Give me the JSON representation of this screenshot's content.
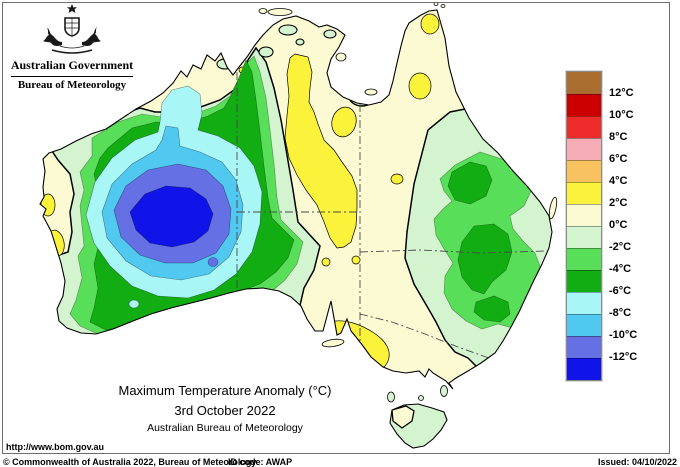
{
  "header": {
    "government": "Australian Government",
    "bureau": "Bureau of Meteorology"
  },
  "map": {
    "title": "Maximum Temperature Anomaly (°C)",
    "date": "3rd October 2022",
    "org": "Australian Bureau of Meteorology"
  },
  "legend": {
    "unit": "°C",
    "labels": [
      "12°C",
      "10°C",
      "8°C",
      "6°C",
      "4°C",
      "2°C",
      "0°C",
      "-2°C",
      "-4°C",
      "-6°C",
      "-8°C",
      "-10°C",
      "-12°C"
    ],
    "colors": [
      "brown",
      "red_dark",
      "red",
      "pink",
      "orange",
      "yellow",
      "cream",
      "green_pale",
      "green_mid",
      "green_dark",
      "cyan_pale",
      "cyan",
      "blue_mid",
      "blue"
    ]
  },
  "palette": {
    "brown": "#A86D2F",
    "red_dark": "#CC0000",
    "red": "#EE2C2C",
    "pink": "#F5ACB4",
    "orange": "#F7C25F",
    "yellow": "#FBF23B",
    "cream": "#FBFAD3",
    "green_pale": "#D4F3CF",
    "green_mid": "#58DE58",
    "green_dark": "#12AD12",
    "cyan_pale": "#A9F6F6",
    "cyan": "#51C8F0",
    "blue_mid": "#6470E4",
    "blue": "#1114E8",
    "sea": "#FFFFFF"
  },
  "footer": {
    "url": "http://www.bom.gov.au",
    "copyright": "© Commonwealth of Australia 2022, Bureau of Meteorology",
    "id_code": "ID code: AWAP",
    "issued": "Issued: 04/10/2022"
  }
}
